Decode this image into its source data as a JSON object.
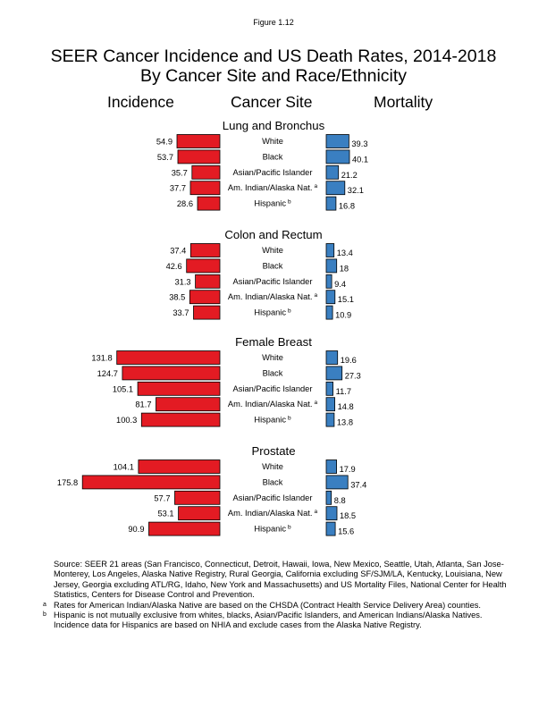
{
  "figure_label": "Figure 1.12",
  "title_line1": "SEER Cancer Incidence and US Death Rates, 2014-2018",
  "title_line2": "By Cancer Site and Race/Ethnicity",
  "column_headers": {
    "left": "Incidence",
    "center": "Cancer Site",
    "right": "Mortality"
  },
  "colors": {
    "incidence": "#e31b23",
    "mortality": "#3a7fc1"
  },
  "chart_data": {
    "type": "bar",
    "orientation": "horizontal-butterfly",
    "categories": [
      "White",
      "Black",
      "Asian/Pacific Islander",
      "Am. Indian/Alaska Nat.",
      "Hispanic"
    ],
    "category_superscripts": [
      "",
      "",
      "",
      "a",
      "b"
    ],
    "panels": [
      {
        "site": "Lung and Bronchus",
        "incidence": [
          54.9,
          53.7,
          35.7,
          37.7,
          28.6
        ],
        "mortality": [
          39.3,
          40.1,
          21.2,
          32.1,
          16.8
        ]
      },
      {
        "site": "Colon and Rectum",
        "incidence": [
          37.4,
          42.6,
          31.3,
          38.5,
          33.7
        ],
        "mortality": [
          13.4,
          18,
          9.4,
          15.1,
          10.9
        ]
      },
      {
        "site": "Female Breast",
        "incidence": [
          131.8,
          124.7,
          105.1,
          81.7,
          100.3
        ],
        "mortality": [
          19.6,
          27.3,
          11.7,
          14.8,
          13.8
        ]
      },
      {
        "site": "Prostate",
        "incidence": [
          104.1,
          175.8,
          57.7,
          53.1,
          90.9
        ],
        "mortality": [
          17.9,
          37.4,
          8.8,
          18.5,
          15.6
        ]
      }
    ]
  },
  "footnotes": {
    "source": "Source: SEER 21 areas (San Francisco, Connecticut, Detroit, Hawaii, Iowa, New Mexico, Seattle, Utah, Atlanta, San Jose-Monterey, Los Angeles, Alaska Native Registry, Rural Georgia, California excluding SF/SJM/LA, Kentucky, Louisiana, New Jersey, Georgia excluding ATL/RG, Idaho, New York and Massachusetts) and US Mortality Files, National Center for Health Statistics, Centers for Disease Control and Prevention.",
    "a_mark": "a",
    "a_text": "Rates for American Indian/Alaska Native are based on the CHSDA (Contract Health Service Delivery Area) counties.",
    "b_mark": "b",
    "b_text": "Hispanic is not mutually exclusive from whites, blacks, Asian/Pacific Islanders, and American Indians/Alaska Natives.",
    "extra": "Incidence data for Hispanics are based on NHIA and exclude cases from the Alaska Native Registry."
  }
}
